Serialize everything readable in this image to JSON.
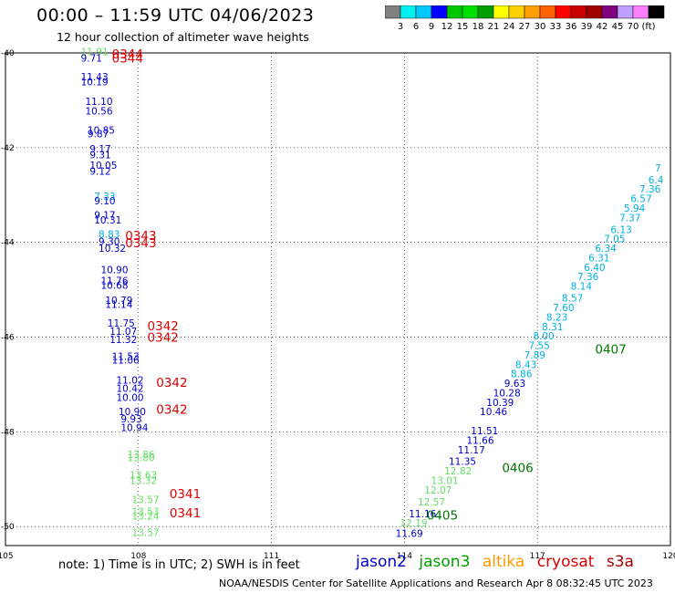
{
  "title": "00:00 – 11:59 UTC 04/06/2023",
  "subtitle": "12 hour collection of altimeter wave heights",
  "colorbar": {
    "colors": [
      "#808080",
      "#00f0f0",
      "#00c8ff",
      "#0000ff",
      "#00c800",
      "#00e000",
      "#00a000",
      "#ffff00",
      "#ffd000",
      "#ffa000",
      "#ff6000",
      "#ff0000",
      "#c80000",
      "#a00000",
      "#800080",
      "#c0a0ff",
      "#ff80ff",
      "#000000"
    ],
    "labels": [
      "3",
      "6",
      "9",
      "12",
      "15",
      "18",
      "21",
      "24",
      "27",
      "30",
      "33",
      "36",
      "39",
      "42",
      "45",
      "70",
      "(ft)"
    ]
  },
  "axes": {
    "x_ticks": [
      "105",
      "108",
      "111",
      "114",
      "117",
      "120"
    ],
    "y_ticks": [
      "-40",
      "-42",
      "-44",
      "-46",
      "-48",
      "-50"
    ]
  },
  "note": "note:  1) Time is in UTC;  2) SWH is in feet",
  "legend": [
    {
      "name": "jason2",
      "color": "#0000cc"
    },
    {
      "name": "jason3",
      "color": "#00a000"
    },
    {
      "name": "altika",
      "color": "#ff9900"
    },
    {
      "name": "cryosat",
      "color": "#dd0000"
    },
    {
      "name": "s3a",
      "color": "#aa0000"
    }
  ],
  "footer": "NOAA/NESDIS Center for Satellite Applications and Research    Apr  8 08:32:45 UTC 2023",
  "track_labels": [
    {
      "lon": 107.4,
      "lat": -40.12,
      "text": "0344",
      "color": "#dd0000"
    },
    {
      "lon": 107.4,
      "lat": -40.2,
      "text": "0344",
      "color": "#dd0000"
    },
    {
      "lon": 107.7,
      "lat": -43.95,
      "text": "0343",
      "color": "#dd0000"
    },
    {
      "lon": 107.7,
      "lat": -44.1,
      "text": "0343",
      "color": "#dd0000"
    },
    {
      "lon": 108.2,
      "lat": -45.85,
      "text": "0342",
      "color": "#dd0000"
    },
    {
      "lon": 108.2,
      "lat": -46.1,
      "text": "0342",
      "color": "#dd0000"
    },
    {
      "lon": 108.4,
      "lat": -47.05,
      "text": "0342",
      "color": "#dd0000"
    },
    {
      "lon": 108.4,
      "lat": -47.62,
      "text": "0342",
      "color": "#dd0000"
    },
    {
      "lon": 108.7,
      "lat": -49.4,
      "text": "0341",
      "color": "#dd0000"
    },
    {
      "lon": 108.7,
      "lat": -49.8,
      "text": "0341",
      "color": "#dd0000"
    },
    {
      "lon": 114.5,
      "lat": -49.85,
      "text": "0405",
      "color": "#007700"
    },
    {
      "lon": 116.2,
      "lat": -48.85,
      "text": "0406",
      "color": "#007700"
    },
    {
      "lon": 118.3,
      "lat": -46.35,
      "text": "0407",
      "color": "#007700"
    }
  ],
  "obs": [
    {
      "lon": 106.7,
      "lat": -40.05,
      "v": "11.91",
      "color": "#66dd66"
    },
    {
      "lon": 106.7,
      "lat": -40.18,
      "v": "9.71",
      "color": "#0000cc"
    },
    {
      "lon": 106.7,
      "lat": -40.58,
      "v": "11.43",
      "color": "#0000cc"
    },
    {
      "lon": 106.7,
      "lat": -40.68,
      "v": "10.19",
      "color": "#0000cc"
    },
    {
      "lon": 106.8,
      "lat": -41.1,
      "v": "11.10",
      "color": "#0000cc"
    },
    {
      "lon": 106.8,
      "lat": -41.3,
      "v": "10.56",
      "color": "#0000cc"
    },
    {
      "lon": 106.85,
      "lat": -41.7,
      "v": "10.85",
      "color": "#0000cc"
    },
    {
      "lon": 106.85,
      "lat": -41.78,
      "v": "9.87",
      "color": "#0000cc"
    },
    {
      "lon": 106.9,
      "lat": -42.1,
      "v": "9.17",
      "color": "#0000cc"
    },
    {
      "lon": 106.9,
      "lat": -42.22,
      "v": "9.31",
      "color": "#0000cc"
    },
    {
      "lon": 106.9,
      "lat": -42.45,
      "v": "10.05",
      "color": "#0000cc"
    },
    {
      "lon": 106.9,
      "lat": -42.57,
      "v": "9.12",
      "color": "#0000cc"
    },
    {
      "lon": 107.0,
      "lat": -43.1,
      "v": "7.33",
      "color": "#00b0e0"
    },
    {
      "lon": 107.0,
      "lat": -43.2,
      "v": "9.10",
      "color": "#0000cc"
    },
    {
      "lon": 107.0,
      "lat": -43.5,
      "v": "9.17",
      "color": "#0000cc"
    },
    {
      "lon": 107.0,
      "lat": -43.6,
      "v": "10.31",
      "color": "#0000cc"
    },
    {
      "lon": 107.1,
      "lat": -43.9,
      "v": "8.83",
      "color": "#00b0e0"
    },
    {
      "lon": 107.1,
      "lat": -44.05,
      "v": "9.30",
      "color": "#0000cc"
    },
    {
      "lon": 107.1,
      "lat": -44.2,
      "v": "10.32",
      "color": "#0000cc"
    },
    {
      "lon": 107.15,
      "lat": -44.65,
      "v": "10.90",
      "color": "#0000cc"
    },
    {
      "lon": 107.15,
      "lat": -44.88,
      "v": "11.76",
      "color": "#0000cc"
    },
    {
      "lon": 107.15,
      "lat": -44.98,
      "v": "10.68",
      "color": "#0000cc"
    },
    {
      "lon": 107.25,
      "lat": -45.3,
      "v": "10.79",
      "color": "#0000cc"
    },
    {
      "lon": 107.25,
      "lat": -45.38,
      "v": "11.14",
      "color": "#0000cc"
    },
    {
      "lon": 107.3,
      "lat": -45.78,
      "v": "11.75",
      "color": "#0000cc"
    },
    {
      "lon": 107.35,
      "lat": -45.95,
      "v": "11.07",
      "color": "#0000cc"
    },
    {
      "lon": 107.35,
      "lat": -46.12,
      "v": "11.32",
      "color": "#0000cc"
    },
    {
      "lon": 107.4,
      "lat": -46.48,
      "v": "11.53",
      "color": "#0000cc"
    },
    {
      "lon": 107.4,
      "lat": -46.56,
      "v": "11.06",
      "color": "#0000cc"
    },
    {
      "lon": 107.5,
      "lat": -46.98,
      "v": "11.02",
      "color": "#0000cc"
    },
    {
      "lon": 107.5,
      "lat": -47.15,
      "v": "10.42",
      "color": "#0000cc"
    },
    {
      "lon": 107.5,
      "lat": -47.35,
      "v": "10.00",
      "color": "#0000cc"
    },
    {
      "lon": 107.55,
      "lat": -47.65,
      "v": "10.90",
      "color": "#0000cc"
    },
    {
      "lon": 107.6,
      "lat": -47.8,
      "v": "9.93",
      "color": "#0000cc"
    },
    {
      "lon": 107.6,
      "lat": -47.98,
      "v": "10.94",
      "color": "#0000cc"
    },
    {
      "lon": 107.75,
      "lat": -48.55,
      "v": "13.86",
      "color": "#66dd66"
    },
    {
      "lon": 107.75,
      "lat": -48.62,
      "v": "13.80",
      "color": "#66dd66"
    },
    {
      "lon": 107.8,
      "lat": -48.98,
      "v": "13.63",
      "color": "#66dd66"
    },
    {
      "lon": 107.8,
      "lat": -49.1,
      "v": "13.32",
      "color": "#66dd66"
    },
    {
      "lon": 107.85,
      "lat": -49.5,
      "v": "13.57",
      "color": "#66dd66"
    },
    {
      "lon": 107.85,
      "lat": -49.75,
      "v": "13.53",
      "color": "#66dd66"
    },
    {
      "lon": 107.85,
      "lat": -49.85,
      "v": "13.24",
      "color": "#66dd66"
    },
    {
      "lon": 107.85,
      "lat": -50.2,
      "v": "13.57",
      "color": "#66dd66"
    },
    {
      "lon": 113.8,
      "lat": -50.22,
      "v": "11.69",
      "color": "#0000cc"
    },
    {
      "lon": 113.9,
      "lat": -50.0,
      "v": "12.19",
      "color": "#66dd66"
    },
    {
      "lon": 114.1,
      "lat": -49.8,
      "v": "11.16",
      "color": "#0000cc"
    },
    {
      "lon": 114.3,
      "lat": -49.55,
      "v": "12.57",
      "color": "#66dd66"
    },
    {
      "lon": 114.45,
      "lat": -49.3,
      "v": "12.07",
      "color": "#66dd66"
    },
    {
      "lon": 114.6,
      "lat": -49.1,
      "v": "13.01",
      "color": "#66dd66"
    },
    {
      "lon": 114.9,
      "lat": -48.9,
      "v": "12.82",
      "color": "#66dd66"
    },
    {
      "lon": 115.0,
      "lat": -48.7,
      "v": "11.35",
      "color": "#0000cc"
    },
    {
      "lon": 115.2,
      "lat": -48.45,
      "v": "11.17",
      "color": "#0000cc"
    },
    {
      "lon": 115.4,
      "lat": -48.25,
      "v": "11.66",
      "color": "#0000cc"
    },
    {
      "lon": 115.5,
      "lat": -48.05,
      "v": "11.51",
      "color": "#0000cc"
    },
    {
      "lon": 115.7,
      "lat": -47.65,
      "v": "10.46",
      "color": "#0000cc"
    },
    {
      "lon": 115.85,
      "lat": -47.45,
      "v": "10.39",
      "color": "#0000cc"
    },
    {
      "lon": 116.0,
      "lat": -47.25,
      "v": "10.28",
      "color": "#0000cc"
    },
    {
      "lon": 116.25,
      "lat": -47.05,
      "v": "9.63",
      "color": "#0000cc"
    },
    {
      "lon": 116.4,
      "lat": -46.85,
      "v": "8.86",
      "color": "#00b0e0"
    },
    {
      "lon": 116.5,
      "lat": -46.65,
      "v": "8.43",
      "color": "#00b0e0"
    },
    {
      "lon": 116.7,
      "lat": -46.45,
      "v": "7.89",
      "color": "#00b0e0"
    },
    {
      "lon": 116.8,
      "lat": -46.25,
      "v": "7.55",
      "color": "#00b0e0"
    },
    {
      "lon": 116.9,
      "lat": -46.05,
      "v": "8.00",
      "color": "#00b0e0"
    },
    {
      "lon": 117.1,
      "lat": -45.85,
      "v": "8.31",
      "color": "#00b0e0"
    },
    {
      "lon": 117.2,
      "lat": -45.65,
      "v": "8.23",
      "color": "#00b0e0"
    },
    {
      "lon": 117.35,
      "lat": -45.45,
      "v": "7.60",
      "color": "#00b0e0"
    },
    {
      "lon": 117.55,
      "lat": -45.25,
      "v": "8.57",
      "color": "#00b0e0"
    },
    {
      "lon": 117.75,
      "lat": -45.0,
      "v": "8.14",
      "color": "#00b0e0"
    },
    {
      "lon": 117.9,
      "lat": -44.8,
      "v": "7.36",
      "color": "#00b0e0"
    },
    {
      "lon": 118.05,
      "lat": -44.6,
      "v": "6.40",
      "color": "#00b0e0"
    },
    {
      "lon": 118.15,
      "lat": -44.4,
      "v": "6.31",
      "color": "#00b0e0"
    },
    {
      "lon": 118.3,
      "lat": -44.2,
      "v": "6.34",
      "color": "#00b0e0"
    },
    {
      "lon": 118.5,
      "lat": -44.0,
      "v": "7.05",
      "color": "#00b0e0"
    },
    {
      "lon": 118.65,
      "lat": -43.8,
      "v": "6.13",
      "color": "#00b0e0"
    },
    {
      "lon": 118.85,
      "lat": -43.55,
      "v": "7.37",
      "color": "#00b0e0"
    },
    {
      "lon": 118.95,
      "lat": -43.35,
      "v": "5.94",
      "color": "#00b0e0"
    },
    {
      "lon": 119.1,
      "lat": -43.15,
      "v": "6.57",
      "color": "#00b0e0"
    },
    {
      "lon": 119.3,
      "lat": -42.95,
      "v": "7.36",
      "color": "#00b0e0"
    },
    {
      "lon": 119.5,
      "lat": -42.75,
      "v": "6.4",
      "color": "#00b0e0"
    },
    {
      "lon": 119.65,
      "lat": -42.5,
      "v": "7",
      "color": "#00b0e0"
    }
  ]
}
